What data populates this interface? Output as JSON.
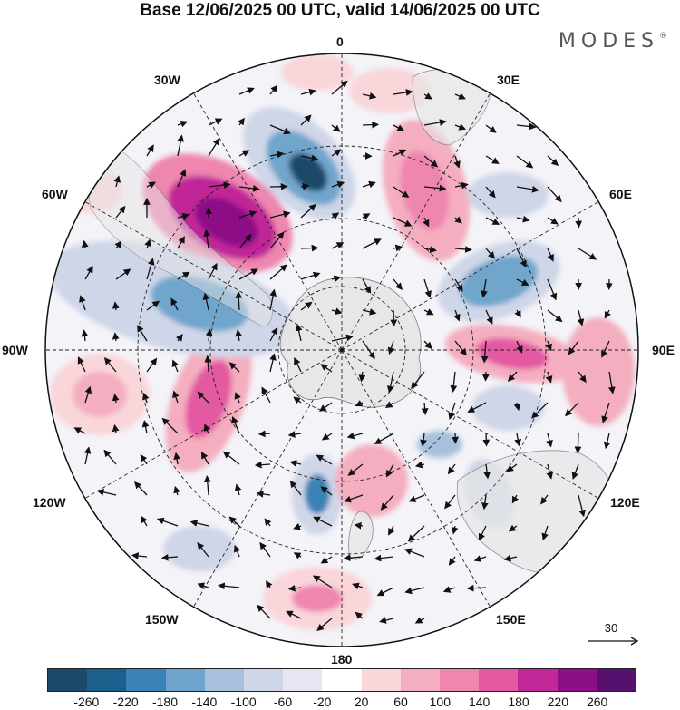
{
  "title": "Base 12/06/2025 00 UTC, valid 14/06/2025 00 UTC",
  "brand": "MODES",
  "brand_mark": "®",
  "map": {
    "projection": "south-polar-stereographic",
    "longitude_labels": {
      "top": "0",
      "top_right": "30E",
      "right_upper": "60E",
      "right": "90E",
      "right_lower": "120E",
      "bottom_right": "150E",
      "bottom": "180",
      "bottom_left": "150W",
      "left_lower": "120W",
      "left": "90W",
      "left_upper": "60W",
      "top_left": "30W"
    },
    "reference_vector": "30"
  },
  "colorbar": {
    "colors": [
      "#1b4a6b",
      "#1d5f8c",
      "#3a83b6",
      "#6fa5cc",
      "#a7c1dc",
      "#cfd6e8",
      "#e7e5f1",
      "#ffffff",
      "#f9d6da",
      "#f4aebf",
      "#ee86b0",
      "#e35aa2",
      "#c02897",
      "#8c0f86",
      "#56116f"
    ],
    "ticks": [
      "-260",
      "-220",
      "-180",
      "-140",
      "-100",
      "-60",
      "-20",
      "20",
      "60",
      "100",
      "140",
      "180",
      "220",
      "260"
    ]
  }
}
